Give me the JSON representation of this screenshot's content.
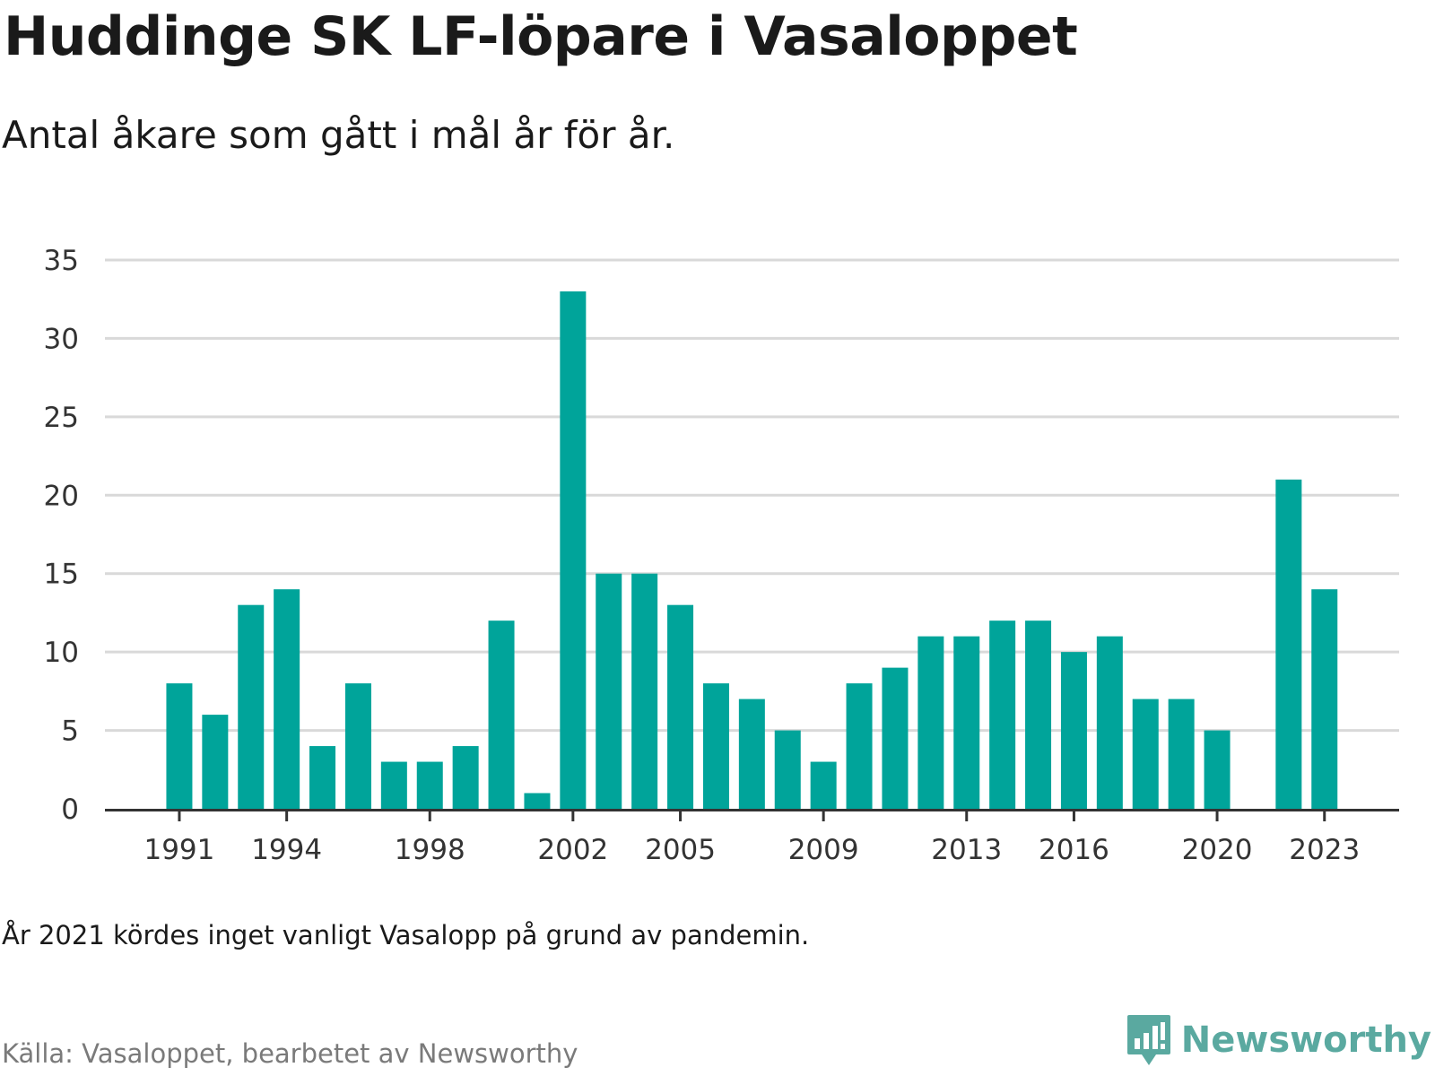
{
  "header": {
    "title": "Huddinge SK LF-löpare i Vasaloppet",
    "subtitle": "Antal åkare som gått i mål år för år."
  },
  "footer": {
    "note": "År 2021 kördes inget vanligt Vasalopp på grund av pandemin.",
    "source": "Källa: Vasaloppet, bearbetet av Newsworthy",
    "brand": "Newsworthy",
    "brand_icon": "newsworthy-logo-icon"
  },
  "colors": {
    "bar": "#00a49a",
    "grid": "#d9d9d9",
    "axis": "#333333",
    "brand": "#5aa9a0"
  },
  "chart_data": {
    "type": "bar",
    "categories": [
      1991,
      1992,
      1993,
      1994,
      1995,
      1996,
      1997,
      1998,
      1999,
      2000,
      2001,
      2002,
      2003,
      2004,
      2005,
      2006,
      2007,
      2008,
      2009,
      2010,
      2011,
      2012,
      2013,
      2014,
      2015,
      2016,
      2017,
      2018,
      2019,
      2020,
      2021,
      2022,
      2023
    ],
    "values": [
      8,
      6,
      13,
      14,
      4,
      8,
      3,
      3,
      4,
      12,
      1,
      33,
      15,
      15,
      13,
      8,
      7,
      5,
      3,
      8,
      9,
      11,
      11,
      12,
      12,
      10,
      11,
      7,
      7,
      5,
      null,
      21,
      14
    ],
    "x_tick_labels": [
      "1991",
      "1994",
      "1998",
      "2002",
      "2005",
      "2009",
      "2013",
      "2016",
      "2020",
      "2023"
    ],
    "y_ticks": [
      0,
      5,
      10,
      15,
      20,
      25,
      30,
      35
    ],
    "ylim": [
      0,
      35
    ],
    "grid": true,
    "legend": "none"
  }
}
